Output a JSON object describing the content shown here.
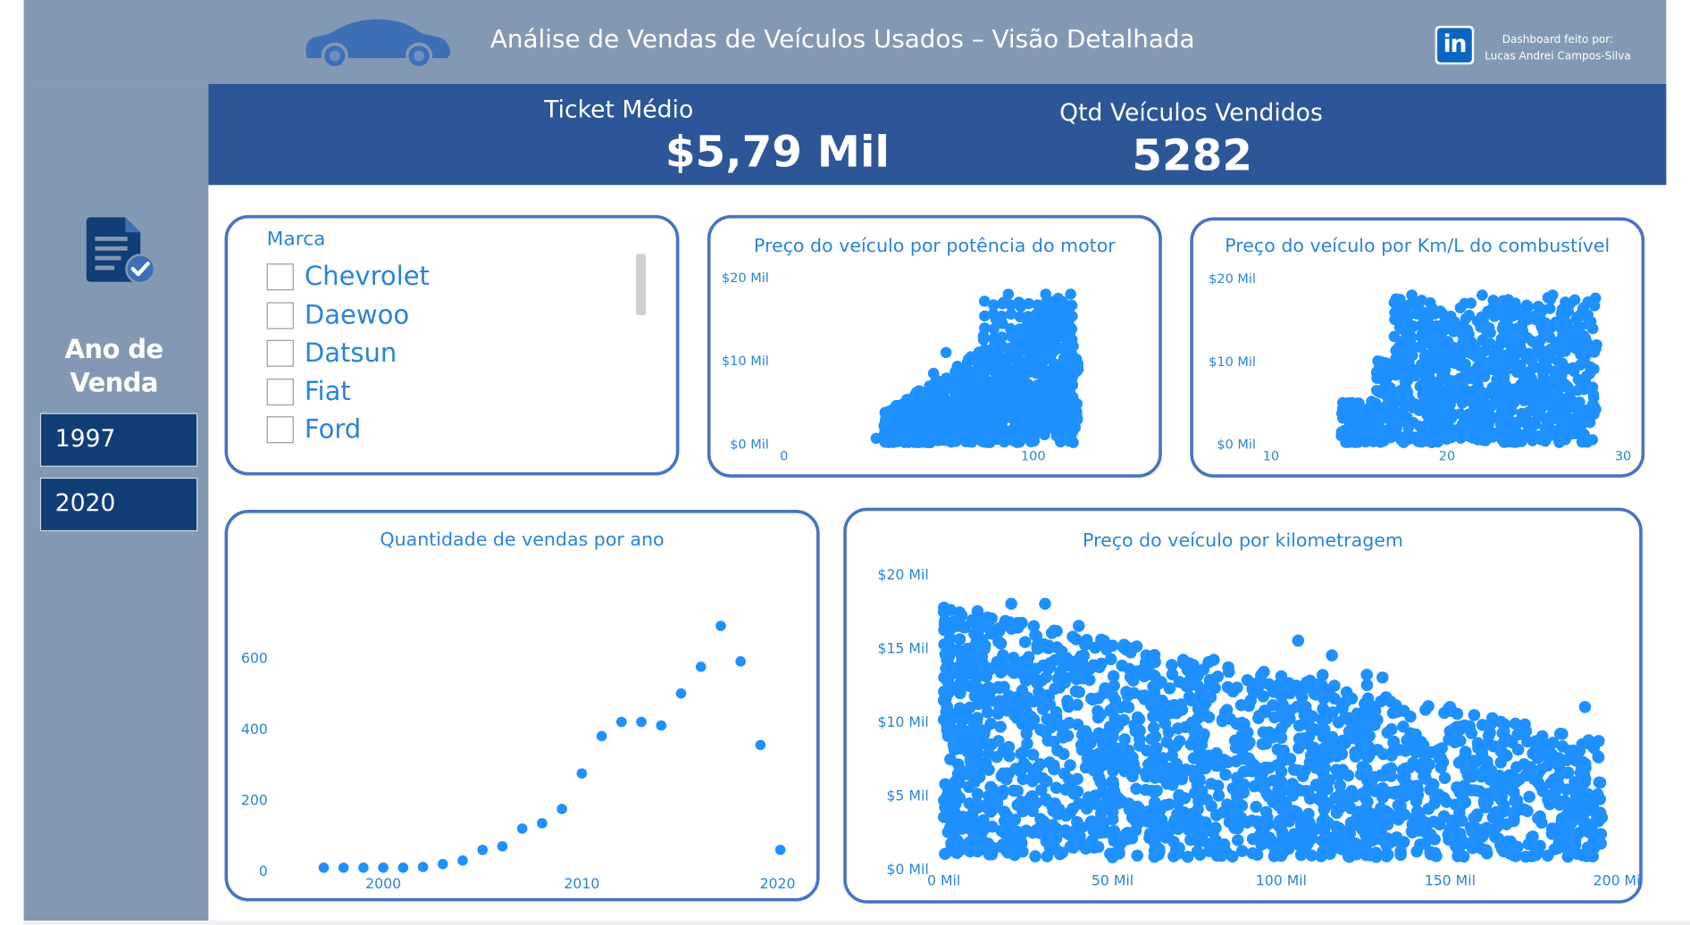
{
  "header": {
    "title": "Análise de Vendas de Veículos Usados – Visão Detalhada",
    "credit_line1": "Dashboard feito por:",
    "credit_line2": "Lucas Andrei Campos-Silva",
    "car_icon": "car-silhouette-icon",
    "linkedin_icon": "linkedin-icon",
    "linkedin_text": "in"
  },
  "colors": {
    "header_band": "#8399b3",
    "kpi_band": "#2c5697",
    "card_border": "#4a73c0",
    "accent_blue": "#2b83d8",
    "point_blue": "#1e90ff",
    "year_box": "#113e77"
  },
  "kpis": [
    {
      "label": "Ticket Médio",
      "value": "$5,79 Mil"
    },
    {
      "label": "Qtd Veículos Vendidos",
      "value": "5282"
    }
  ],
  "sidebar": {
    "icon": "document-check-icon",
    "title_line1": "Ano de",
    "title_line2": "Venda",
    "years": [
      "1997",
      "2020"
    ]
  },
  "slicer": {
    "header": "Marca",
    "items": [
      "Chevrolet",
      "Daewoo",
      "Datsun",
      "Fiat",
      "Ford"
    ]
  },
  "chart_data": [
    {
      "type": "scatter",
      "title": "Preço do veículo por potência do motor",
      "xlabel": "",
      "ylabel": "",
      "x_ticks": [
        0,
        100
      ],
      "x_tick_labels": [
        "0",
        "100"
      ],
      "y_ticks": [
        0,
        10000,
        20000
      ],
      "y_tick_labels": [
        "$0 Mil",
        "$10 Mil",
        "$20 Mil"
      ],
      "xlim": [
        0,
        120
      ],
      "ylim": [
        0,
        20000
      ],
      "density": "dense point cloud",
      "x_range_of_points": [
        35,
        120
      ],
      "y_range_of_points": [
        0,
        18000
      ],
      "points": [
        [
          37,
          700
        ],
        [
          45,
          2500
        ],
        [
          50,
          3600
        ],
        [
          55,
          4200
        ],
        [
          60,
          8500
        ],
        [
          65,
          11000
        ],
        [
          70,
          9000
        ],
        [
          75,
          10500
        ],
        [
          80,
          13000
        ],
        [
          85,
          15000
        ],
        [
          88,
          17000
        ],
        [
          90,
          18000
        ],
        [
          95,
          16500
        ],
        [
          100,
          14000
        ],
        [
          105,
          18000
        ],
        [
          110,
          17500
        ],
        [
          115,
          18000
        ],
        [
          118,
          9000
        ]
      ],
      "legend": "none",
      "grid": false
    },
    {
      "type": "scatter",
      "title": "Preço do veículo por Km/L do combustível",
      "xlabel": "",
      "ylabel": "",
      "x_ticks": [
        10,
        20,
        30
      ],
      "x_tick_labels": [
        "10",
        "20",
        "30"
      ],
      "y_ticks": [
        0,
        10000,
        20000
      ],
      "y_tick_labels": [
        "$0 Mil",
        "$10 Mil",
        "$20 Mil"
      ],
      "xlim": [
        10,
        30
      ],
      "ylim": [
        0,
        20000
      ],
      "density": "dense point cloud",
      "x_range_of_points": [
        13.5,
        28.7
      ],
      "y_range_of_points": [
        0,
        18000
      ],
      "points": [
        [
          14,
          1000
        ],
        [
          15,
          4000
        ],
        [
          16,
          6500
        ],
        [
          17,
          13000
        ],
        [
          18,
          18000
        ],
        [
          19,
          14000
        ],
        [
          20,
          15000
        ],
        [
          21,
          17000
        ],
        [
          22,
          18000
        ],
        [
          23,
          12000
        ],
        [
          24,
          14000
        ],
        [
          25,
          15500
        ],
        [
          26,
          18000
        ],
        [
          27,
          12500
        ],
        [
          28,
          14500
        ],
        [
          28.5,
          12000
        ]
      ],
      "legend": "none",
      "grid": false
    },
    {
      "type": "scatter",
      "title": "Quantidade de vendas por ano",
      "xlabel": "",
      "ylabel": "",
      "x_ticks": [
        2000,
        2010,
        2020
      ],
      "x_tick_labels": [
        "2000",
        "2010",
        "2020"
      ],
      "y_ticks": [
        0,
        200,
        400,
        600
      ],
      "y_tick_labels": [
        "0",
        "200",
        "400",
        "600"
      ],
      "xlim": [
        1995,
        2021
      ],
      "ylim": [
        0,
        720
      ],
      "x": [
        1997,
        1998,
        1999,
        2000,
        2001,
        2002,
        2003,
        2004,
        2005,
        2006,
        2007,
        2008,
        2009,
        2010,
        2011,
        2012,
        2013,
        2014,
        2015,
        2016,
        2017,
        2018,
        2019,
        2020
      ],
      "y": [
        10,
        10,
        10,
        10,
        10,
        12,
        20,
        30,
        60,
        70,
        120,
        135,
        175,
        275,
        380,
        420,
        420,
        410,
        500,
        575,
        690,
        590,
        355,
        60
      ],
      "legend": "none",
      "grid": false
    },
    {
      "type": "scatter",
      "title": "Preço do veículo por kilometragem",
      "xlabel": "",
      "ylabel": "",
      "x_ticks": [
        0,
        50000,
        100000,
        150000,
        200000
      ],
      "x_tick_labels": [
        "0 Mil",
        "50 Mil",
        "100 Mil",
        "150 Mil",
        "200 Mil"
      ],
      "y_ticks": [
        0,
        5000,
        10000,
        15000,
        20000
      ],
      "y_tick_labels": [
        "$0 Mil",
        "$5 Mil",
        "$10 Mil",
        "$15 Mil",
        "$20 Mil"
      ],
      "xlim": [
        0,
        200000
      ],
      "ylim": [
        0,
        20000
      ],
      "density": "dense point cloud",
      "x_range_of_points": [
        0,
        195000
      ],
      "y_range_of_points": [
        700,
        18000
      ],
      "points": [
        [
          5000,
          16500
        ],
        [
          10000,
          17500
        ],
        [
          20000,
          18000
        ],
        [
          30000,
          18000
        ],
        [
          40000,
          16500
        ],
        [
          60000,
          14500
        ],
        [
          80000,
          14200
        ],
        [
          105000,
          15500
        ],
        [
          115000,
          14500
        ],
        [
          130000,
          13000
        ],
        [
          150000,
          11000
        ],
        [
          165000,
          10000
        ],
        [
          190000,
          11000
        ],
        [
          195000,
          3500
        ],
        [
          170000,
          1500
        ],
        [
          100000,
          900
        ],
        [
          50000,
          800
        ],
        [
          10000,
          1200
        ]
      ],
      "legend": "none",
      "grid": false
    }
  ]
}
